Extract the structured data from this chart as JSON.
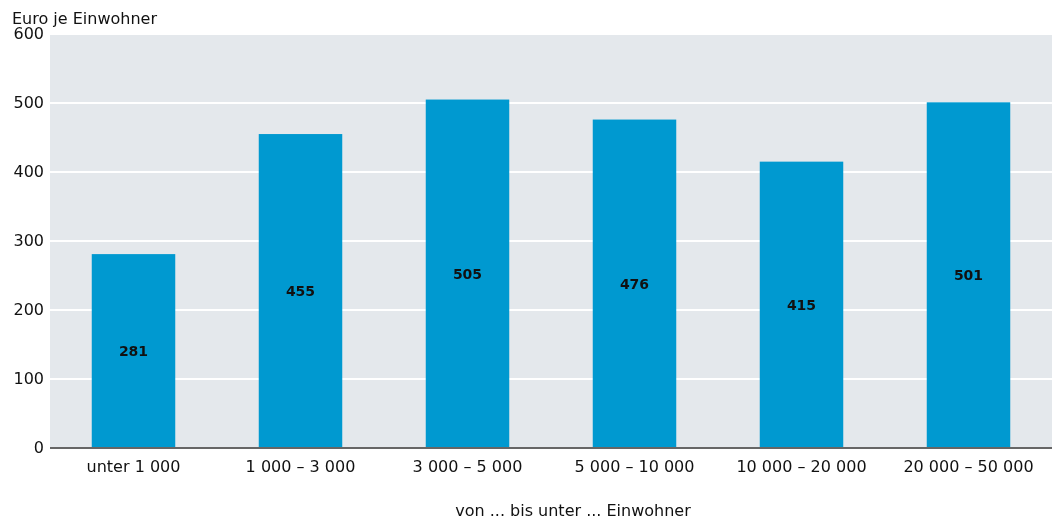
{
  "chart_data": {
    "type": "bar",
    "ylabel": "Euro je Einwohner",
    "xlabel": "von ... bis unter ... Einwohner",
    "categories": [
      "unter 1 000",
      "1 000 – 3 000",
      "3 000 – 5 000",
      "5 000 – 10 000",
      "10 000 – 20 000",
      "20 000 – 50 000"
    ],
    "values": [
      281,
      455,
      505,
      476,
      415,
      501
    ],
    "color": "#0099d0",
    "ylim": [
      0,
      600
    ],
    "yticks": [
      0,
      100,
      200,
      300,
      400,
      500,
      600
    ],
    "grid": "y",
    "data_labels": true
  }
}
